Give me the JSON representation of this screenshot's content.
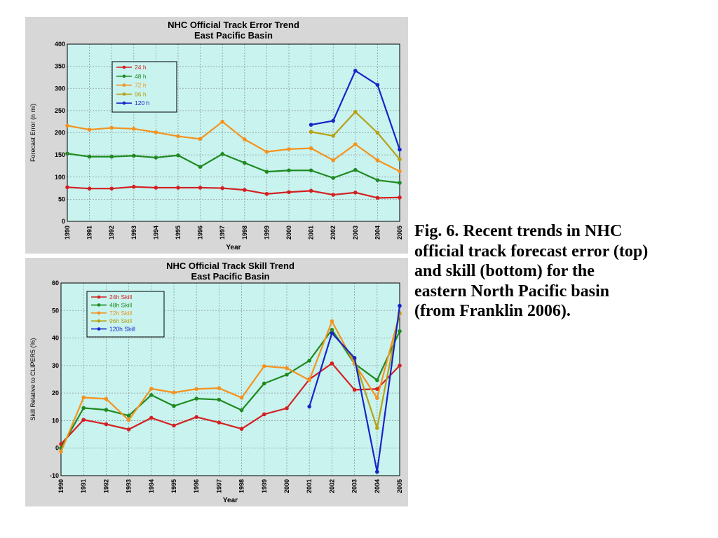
{
  "caption": [
    "Fig. 6. Recent trends in NHC",
    "official track forecast error (top)",
    "and skill (bottom) for the",
    "eastern North Pacific basin",
    "(from Franklin 2006)."
  ],
  "chart_data": [
    {
      "type": "line",
      "title": "NHC Official Track Error Trend",
      "subtitle": "East Pacific Basin",
      "xlabel": "Year",
      "ylabel": "Forecast Error (n mi)",
      "ylim": [
        0,
        400
      ],
      "yticks": [
        0,
        50,
        100,
        150,
        200,
        250,
        300,
        350,
        400
      ],
      "x": [
        "1990",
        "1991",
        "1992",
        "1993",
        "1994",
        "1995",
        "1996",
        "1997",
        "1998",
        "1999",
        "2000",
        "2001",
        "2002",
        "2003",
        "2004",
        "2005"
      ],
      "grid": true,
      "legend": "top-left",
      "series": [
        {
          "name": "24 h",
          "color": "#d42020",
          "values": [
            77,
            74,
            74,
            78,
            76,
            76,
            76,
            75,
            71,
            62,
            66,
            69,
            60,
            65,
            53,
            54
          ]
        },
        {
          "name": "48 h",
          "color": "#1f8a20",
          "values": [
            153,
            146,
            146,
            148,
            144,
            149,
            123,
            152,
            132,
            112,
            115,
            115,
            98,
            116,
            93,
            87
          ]
        },
        {
          "name": "72 h",
          "color": "#f5921e",
          "values": [
            216,
            207,
            211,
            209,
            201,
            192,
            186,
            225,
            185,
            157,
            163,
            165,
            138,
            174,
            138,
            113
          ]
        },
        {
          "name": "96 h",
          "color": "#b8a014",
          "values": [
            null,
            null,
            null,
            null,
            null,
            null,
            null,
            null,
            null,
            null,
            null,
            202,
            193,
            247,
            200,
            140
          ]
        },
        {
          "name": "120 h",
          "color": "#1824c8",
          "values": [
            null,
            null,
            null,
            null,
            null,
            null,
            null,
            null,
            null,
            null,
            null,
            218,
            227,
            340,
            308,
            162
          ]
        }
      ]
    },
    {
      "type": "line",
      "title": "NHC Official Track Skill Trend",
      "subtitle": "East Pacific Basin",
      "xlabel": "Year",
      "ylabel": "Skill Relative to CLIPER5 (%)",
      "ylim": [
        -10,
        60
      ],
      "yticks": [
        -10,
        0,
        10,
        20,
        30,
        40,
        50,
        60
      ],
      "x": [
        "1990",
        "1991",
        "1992",
        "1993",
        "1994",
        "1995",
        "1996",
        "1997",
        "1998",
        "1999",
        "2000",
        "2001",
        "2002",
        "2003",
        "2004",
        "2005"
      ],
      "grid": true,
      "legend": "top-left",
      "series": [
        {
          "name": "24h Skill",
          "color": "#d42020",
          "values": [
            1.5,
            10.3,
            8.7,
            6.8,
            11,
            8.2,
            11.3,
            9.3,
            7,
            12.3,
            14.5,
            25,
            30.8,
            21.2,
            21.5,
            30
          ]
        },
        {
          "name": "48h Skill",
          "color": "#1f8a20",
          "values": [
            0,
            14.6,
            13.9,
            11.8,
            19.3,
            15.3,
            18,
            17.6,
            13.8,
            23.5,
            26.7,
            31.8,
            43,
            30.7,
            24.7,
            42.5
          ]
        },
        {
          "name": "72h Skill",
          "color": "#f5921e",
          "values": [
            -1.3,
            18.4,
            17.9,
            10.2,
            21.6,
            20.2,
            21.5,
            21.8,
            18.3,
            29.8,
            29.1,
            24.7,
            46.1,
            30.7,
            18.2,
            48.8
          ]
        },
        {
          "name": "96h Skill",
          "color": "#b8a014",
          "values": [
            null,
            null,
            null,
            null,
            null,
            null,
            null,
            null,
            null,
            null,
            null,
            null,
            42,
            32.2,
            7.3,
            49.1
          ]
        },
        {
          "name": "120h Skill",
          "color": "#1824c8",
          "values": [
            null,
            null,
            null,
            null,
            null,
            null,
            null,
            null,
            null,
            null,
            null,
            15.1,
            41.8,
            32.8,
            -8.6,
            51.7
          ]
        }
      ]
    }
  ]
}
